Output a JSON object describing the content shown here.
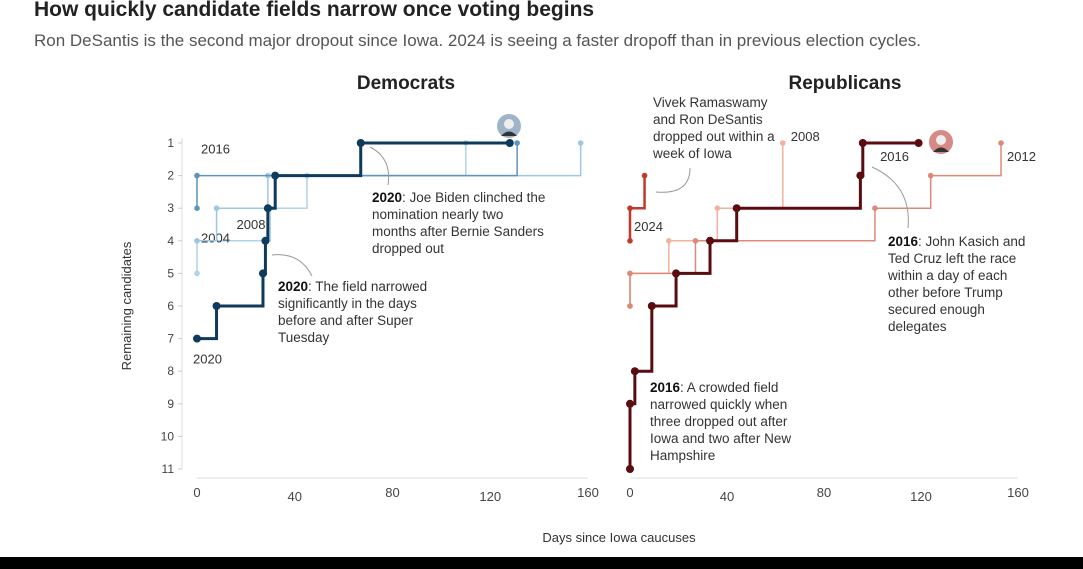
{
  "header": {
    "title": "How quickly candidate fields narrow once voting begins",
    "subtitle": "Ron DeSantis is the second major dropout since Iowa. 2024 is seeing a faster dropoff than in previous election cycles."
  },
  "chart_data": [
    {
      "type": "line",
      "step": true,
      "title": "Democrats",
      "xlabel": "Days since Iowa caucuses",
      "ylabel": "Remaining candidates",
      "xlim": [
        0,
        160
      ],
      "ylim": [
        11,
        1
      ],
      "xticks": [
        "0",
        "40",
        "80",
        "120",
        "160"
      ],
      "yticks": [
        "1",
        "2",
        "3",
        "4",
        "5",
        "6",
        "7",
        "8",
        "9",
        "10",
        "11"
      ],
      "series": [
        {
          "name": "2004",
          "color": "#aed3ea",
          "points": [
            [
              0,
              5
            ],
            [
              0,
              4
            ],
            [
              30,
              3
            ],
            [
              45,
              2
            ],
            [
              110,
              1
            ]
          ]
        },
        {
          "name": "2008",
          "color": "#9cc8e4",
          "points": [
            [
              0,
              4
            ],
            [
              8,
              3
            ],
            [
              29,
              2
            ],
            [
              157,
              1
            ]
          ]
        },
        {
          "name": "2016",
          "color": "#5f94bb",
          "points": [
            [
              0,
              3
            ],
            [
              0,
              2
            ],
            [
              131,
              1
            ]
          ]
        },
        {
          "name": "2020",
          "color": "#0e3a5c",
          "points": [
            [
              0,
              7
            ],
            [
              8,
              6
            ],
            [
              27,
              5
            ],
            [
              28,
              4
            ],
            [
              29,
              3
            ],
            [
              32,
              2
            ],
            [
              67,
              1
            ],
            [
              128,
              1
            ]
          ]
        }
      ],
      "annotations": [
        {
          "bold": "2020",
          "text": ": Joe Biden clinched the nomination nearly two months after Bernie Sanders dropped out"
        },
        {
          "bold": "2020",
          "text": ": The field narrowed significantly in the days before and after Super Tuesday"
        }
      ]
    },
    {
      "type": "line",
      "step": true,
      "title": "Republicans",
      "xlim": [
        0,
        160
      ],
      "ylim": [
        11,
        1
      ],
      "xticks": [
        "0",
        "40",
        "80",
        "120",
        "160"
      ],
      "series": [
        {
          "name": "2008",
          "color": "#f2b29c",
          "points": [
            [
              0,
              6
            ],
            [
              0,
              5
            ],
            [
              16,
              4
            ],
            [
              36,
              3
            ],
            [
              63,
              1
            ]
          ]
        },
        {
          "name": "2012",
          "color": "#dc8a78",
          "points": [
            [
              0,
              6
            ],
            [
              0,
              5
            ],
            [
              27,
              4
            ],
            [
              101,
              3
            ],
            [
              124,
              2
            ],
            [
              153,
              1
            ]
          ]
        },
        {
          "name": "2024",
          "color": "#c0392b",
          "points": [
            [
              0,
              4
            ],
            [
              0,
              3
            ],
            [
              6,
              2
            ]
          ]
        },
        {
          "name": "2016",
          "color": "#5a0c10",
          "points": [
            [
              0,
              11
            ],
            [
              0,
              9
            ],
            [
              2,
              8
            ],
            [
              9,
              6
            ],
            [
              19,
              5
            ],
            [
              33,
              4
            ],
            [
              44,
              3
            ],
            [
              95,
              2
            ],
            [
              96,
              1
            ],
            [
              119,
              1
            ]
          ]
        }
      ],
      "annotations": [
        {
          "bold": "",
          "text": "Vivek Ramaswamy and Ron DeSantis dropped out within a week of Iowa"
        },
        {
          "bold": "2016",
          "text": ": John Kasich and Ted Cruz left the race within a day of each other before Trump secured enough delegates"
        },
        {
          "bold": "2016",
          "text": ": A crowded field narrowed quickly when three dropped out after Iowa and two after New Hampshire"
        }
      ]
    }
  ]
}
